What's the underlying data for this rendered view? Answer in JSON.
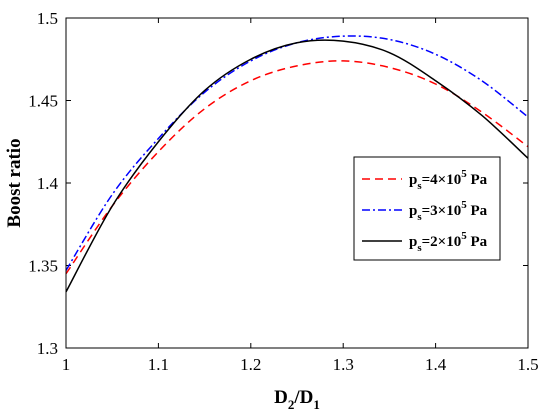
{
  "chart_data": {
    "type": "line",
    "xlabel": {
      "base1": "D",
      "sub1": "2",
      "slash": "/",
      "base2": "D",
      "sub2": "1"
    },
    "ylabel": "Boost ratio",
    "xlim": [
      1,
      1.5
    ],
    "ylim": [
      1.3,
      1.5
    ],
    "xticks": [
      "1",
      "1.1",
      "1.2",
      "1.3",
      "1.4",
      "1.5"
    ],
    "yticks": [
      "1.3",
      "1.35",
      "1.4",
      "1.45",
      "1.5"
    ],
    "grid": false,
    "legend_position": "right",
    "series": [
      {
        "name": "ps=4×10^5 Pa",
        "label": {
          "p": "p",
          "sub": "s",
          "mid": "=4×10",
          "sup": "5",
          "unit": " Pa"
        },
        "color": "#ff0000",
        "style": "dashed",
        "x": [
          1.0,
          1.05,
          1.1,
          1.15,
          1.2,
          1.25,
          1.3,
          1.35,
          1.4,
          1.45,
          1.5
        ],
        "y": [
          1.345,
          1.386,
          1.419,
          1.445,
          1.462,
          1.471,
          1.474,
          1.47,
          1.46,
          1.443,
          1.422
        ]
      },
      {
        "name": "ps=3×10^5 Pa",
        "label": {
          "p": "p",
          "sub": "s",
          "mid": "=3×10",
          "sup": "5",
          "unit": " Pa"
        },
        "color": "#0000ff",
        "style": "dashdot",
        "x": [
          1.0,
          1.05,
          1.1,
          1.15,
          1.2,
          1.25,
          1.3,
          1.35,
          1.4,
          1.45,
          1.5
        ],
        "y": [
          1.347,
          1.393,
          1.427,
          1.455,
          1.474,
          1.485,
          1.489,
          1.487,
          1.478,
          1.462,
          1.44
        ]
      },
      {
        "name": "ps=2×10^5 Pa",
        "label": {
          "p": "p",
          "sub": "s",
          "mid": "=2×10",
          "sup": "5",
          "unit": " Pa"
        },
        "color": "#000000",
        "style": "solid",
        "x": [
          1.0,
          1.05,
          1.1,
          1.15,
          1.2,
          1.25,
          1.3,
          1.35,
          1.4,
          1.45,
          1.5
        ],
        "y": [
          1.334,
          1.386,
          1.425,
          1.456,
          1.475,
          1.485,
          1.486,
          1.479,
          1.462,
          1.441,
          1.415
        ]
      }
    ]
  }
}
